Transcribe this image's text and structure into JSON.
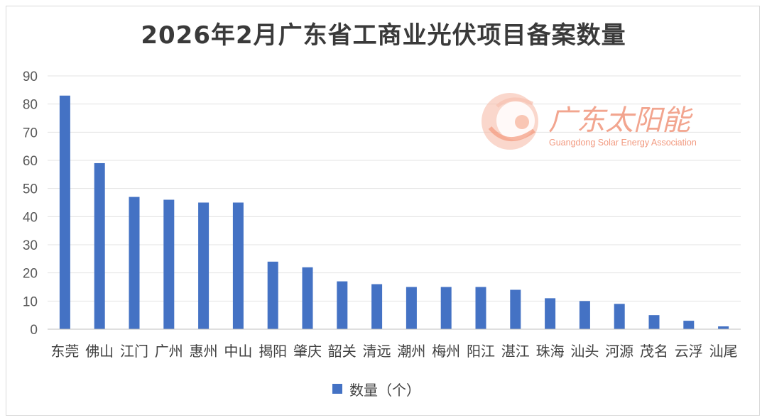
{
  "chart_data": {
    "type": "bar",
    "title": "2026年2月广东省工商业光伏项目备案数量",
    "categories": [
      "东莞",
      "佛山",
      "江门",
      "广州",
      "惠州",
      "中山",
      "揭阳",
      "肇庆",
      "韶关",
      "清远",
      "潮州",
      "梅州",
      "阳江",
      "湛江",
      "珠海",
      "汕头",
      "河源",
      "茂名",
      "云浮",
      "汕尾"
    ],
    "series": [
      {
        "name": "数量（个）",
        "values": [
          83,
          59,
          47,
          46,
          45,
          45,
          24,
          22,
          17,
          16,
          15,
          15,
          15,
          14,
          11,
          10,
          9,
          5,
          3,
          1
        ]
      }
    ],
    "ylim": [
      0,
      90
    ],
    "yticks": [
      0,
      10,
      20,
      30,
      40,
      50,
      60,
      70,
      80,
      90
    ],
    "grid": true,
    "legend": "bottom",
    "bar_color": "#4472c4"
  },
  "watermark": {
    "cn_text": "广东太阳能",
    "en_text": "Guangdong Solar Energy Association",
    "color": "#f09a80"
  }
}
